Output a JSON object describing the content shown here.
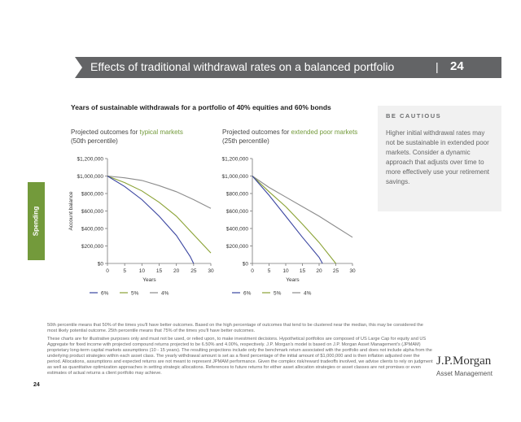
{
  "header": {
    "title": "Effects of traditional withdrawal rates on a balanced portfolio",
    "separator": "|",
    "page": "24"
  },
  "side_tab": {
    "label": "Spending",
    "color": "#739a3b"
  },
  "subtitle": "Years of sustainable withdrawals for a portfolio of 40% equities and 60% bonds",
  "callout": {
    "heading": "BE CAUTIOUS",
    "body": "Higher initial withdrawal rates may not be sustainable in extended poor markets. Consider a dynamic approach that adjusts over time to more effectively use your retirement savings."
  },
  "chart_data": [
    {
      "type": "line",
      "title_prefix": "Projected outcomes for ",
      "title_highlight": "typical markets",
      "title_line2": "(50th percentile)",
      "xlabel": "Years",
      "ylabel": "Account balance",
      "xlim": [
        0,
        30
      ],
      "ylim": [
        0,
        1200000
      ],
      "x_ticks": [
        "0",
        "5",
        "10",
        "15",
        "20",
        "25",
        "30"
      ],
      "y_ticks": [
        "$0",
        "$200,000",
        "$400,000",
        "$600,000",
        "$800,000",
        "$1,000,000",
        "$1,200,000"
      ],
      "grid": false,
      "legend_position": "bottom",
      "series": [
        {
          "name": "6%",
          "color": "#3a45a0",
          "points": [
            [
              0,
              1000000
            ],
            [
              5,
              880000
            ],
            [
              10,
              730000
            ],
            [
              15,
              540000
            ],
            [
              20,
              320000
            ],
            [
              24,
              80000
            ],
            [
              25,
              0
            ]
          ]
        },
        {
          "name": "5%",
          "color": "#8aa234",
          "points": [
            [
              0,
              1000000
            ],
            [
              5,
              925000
            ],
            [
              10,
              830000
            ],
            [
              15,
              700000
            ],
            [
              20,
              540000
            ],
            [
              25,
              330000
            ],
            [
              30,
              120000
            ]
          ]
        },
        {
          "name": "4%",
          "color": "#8c8c8c",
          "points": [
            [
              0,
              1000000
            ],
            [
              5,
              980000
            ],
            [
              10,
              950000
            ],
            [
              15,
              890000
            ],
            [
              20,
              820000
            ],
            [
              25,
              730000
            ],
            [
              30,
              630000
            ]
          ]
        }
      ]
    },
    {
      "type": "line",
      "title_prefix": "Projected outcomes for ",
      "title_highlight": "extended poor markets",
      "title_line2": "(25th percentile)",
      "xlabel": "Years",
      "xlim": [
        0,
        30
      ],
      "ylim": [
        0,
        1200000
      ],
      "x_ticks": [
        "0",
        "5",
        "10",
        "15",
        "20",
        "25",
        "30"
      ],
      "y_ticks": [
        "$0",
        "$200,000",
        "$400,000",
        "$600,000",
        "$800,000",
        "$1,000,000",
        "$1,200,000"
      ],
      "grid": false,
      "legend_position": "bottom",
      "series": [
        {
          "name": "6%",
          "color": "#3a45a0",
          "points": [
            [
              0,
              1000000
            ],
            [
              5,
              780000
            ],
            [
              10,
              540000
            ],
            [
              15,
              300000
            ],
            [
              20,
              70000
            ],
            [
              21,
              0
            ]
          ]
        },
        {
          "name": "5%",
          "color": "#8aa234",
          "points": [
            [
              0,
              1000000
            ],
            [
              5,
              820000
            ],
            [
              10,
              650000
            ],
            [
              15,
              450000
            ],
            [
              20,
              240000
            ],
            [
              25,
              0
            ]
          ]
        },
        {
          "name": "4%",
          "color": "#8c8c8c",
          "points": [
            [
              0,
              1000000
            ],
            [
              5,
              870000
            ],
            [
              10,
              760000
            ],
            [
              15,
              650000
            ],
            [
              20,
              540000
            ],
            [
              25,
              420000
            ],
            [
              30,
              300000
            ]
          ]
        }
      ]
    }
  ],
  "notes": [
    "50th percentile means that 50% of the times you'll have better outcomes. Based on the high percentage of outcomes that tend to be clustered near the median, this may be considered the most likely potential outcome. 25th percentile means that 75% of the times you'll have better outcomes.",
    "These charts are for illustrative purposes only and must not be used, or relied upon, to make investment decisions. Hypothetical portfolios are composed of US Large Cap for equity and US Aggregate for fixed income with projected compound returns projected to be 6.50% and 4.00%, respectively. J.P. Morgan's model is based on J.P. Morgan Asset Management's (JPMAM) proprietary long-term capital markets assumptions (10 - 15 years). The resulting projections include only the benchmark return associated with the portfolio and does not include alpha from the underlying product strategies within each asset class. The yearly withdrawal amount is set as a fixed percentage of the initial amount of $1,000,000 and is then inflation adjusted over the period. Allocations, assumptions and expected returns are not meant to represent JPMAM performance. Given the complex risk/reward tradeoffs involved, we advise clients to rely on judgment as well as quantitative optimization approaches in setting strategic allocations. References to future returns for either asset allocation strategies or asset classes are not promises or even estimates of actual returns a client portfolio may achieve."
  ],
  "footer": {
    "page": "24",
    "logo": "J.P.Morgan",
    "logo_sub": "Asset Management"
  }
}
